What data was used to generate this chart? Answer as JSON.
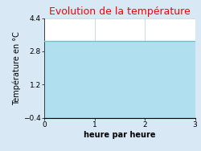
{
  "title": "Evolution de la température",
  "title_color": "#ff0000",
  "xlabel": "heure par heure",
  "ylabel": "Température en °C",
  "x_data": [
    0,
    3
  ],
  "y_data": [
    3.3,
    3.3
  ],
  "y_fill_bottom": -0.4,
  "ylim": [
    -0.4,
    4.4
  ],
  "xlim": [
    0,
    3
  ],
  "yticks": [
    -0.4,
    1.2,
    2.8,
    4.4
  ],
  "xticks": [
    0,
    1,
    2,
    3
  ],
  "line_color": "#55c8e8",
  "fill_color": "#b0e0f0",
  "background_color": "#d8e8f5",
  "axes_bg_color": "#ffffff",
  "grid_color": "#bbccdd",
  "title_fontsize": 9,
  "label_fontsize": 7,
  "tick_fontsize": 6.5
}
